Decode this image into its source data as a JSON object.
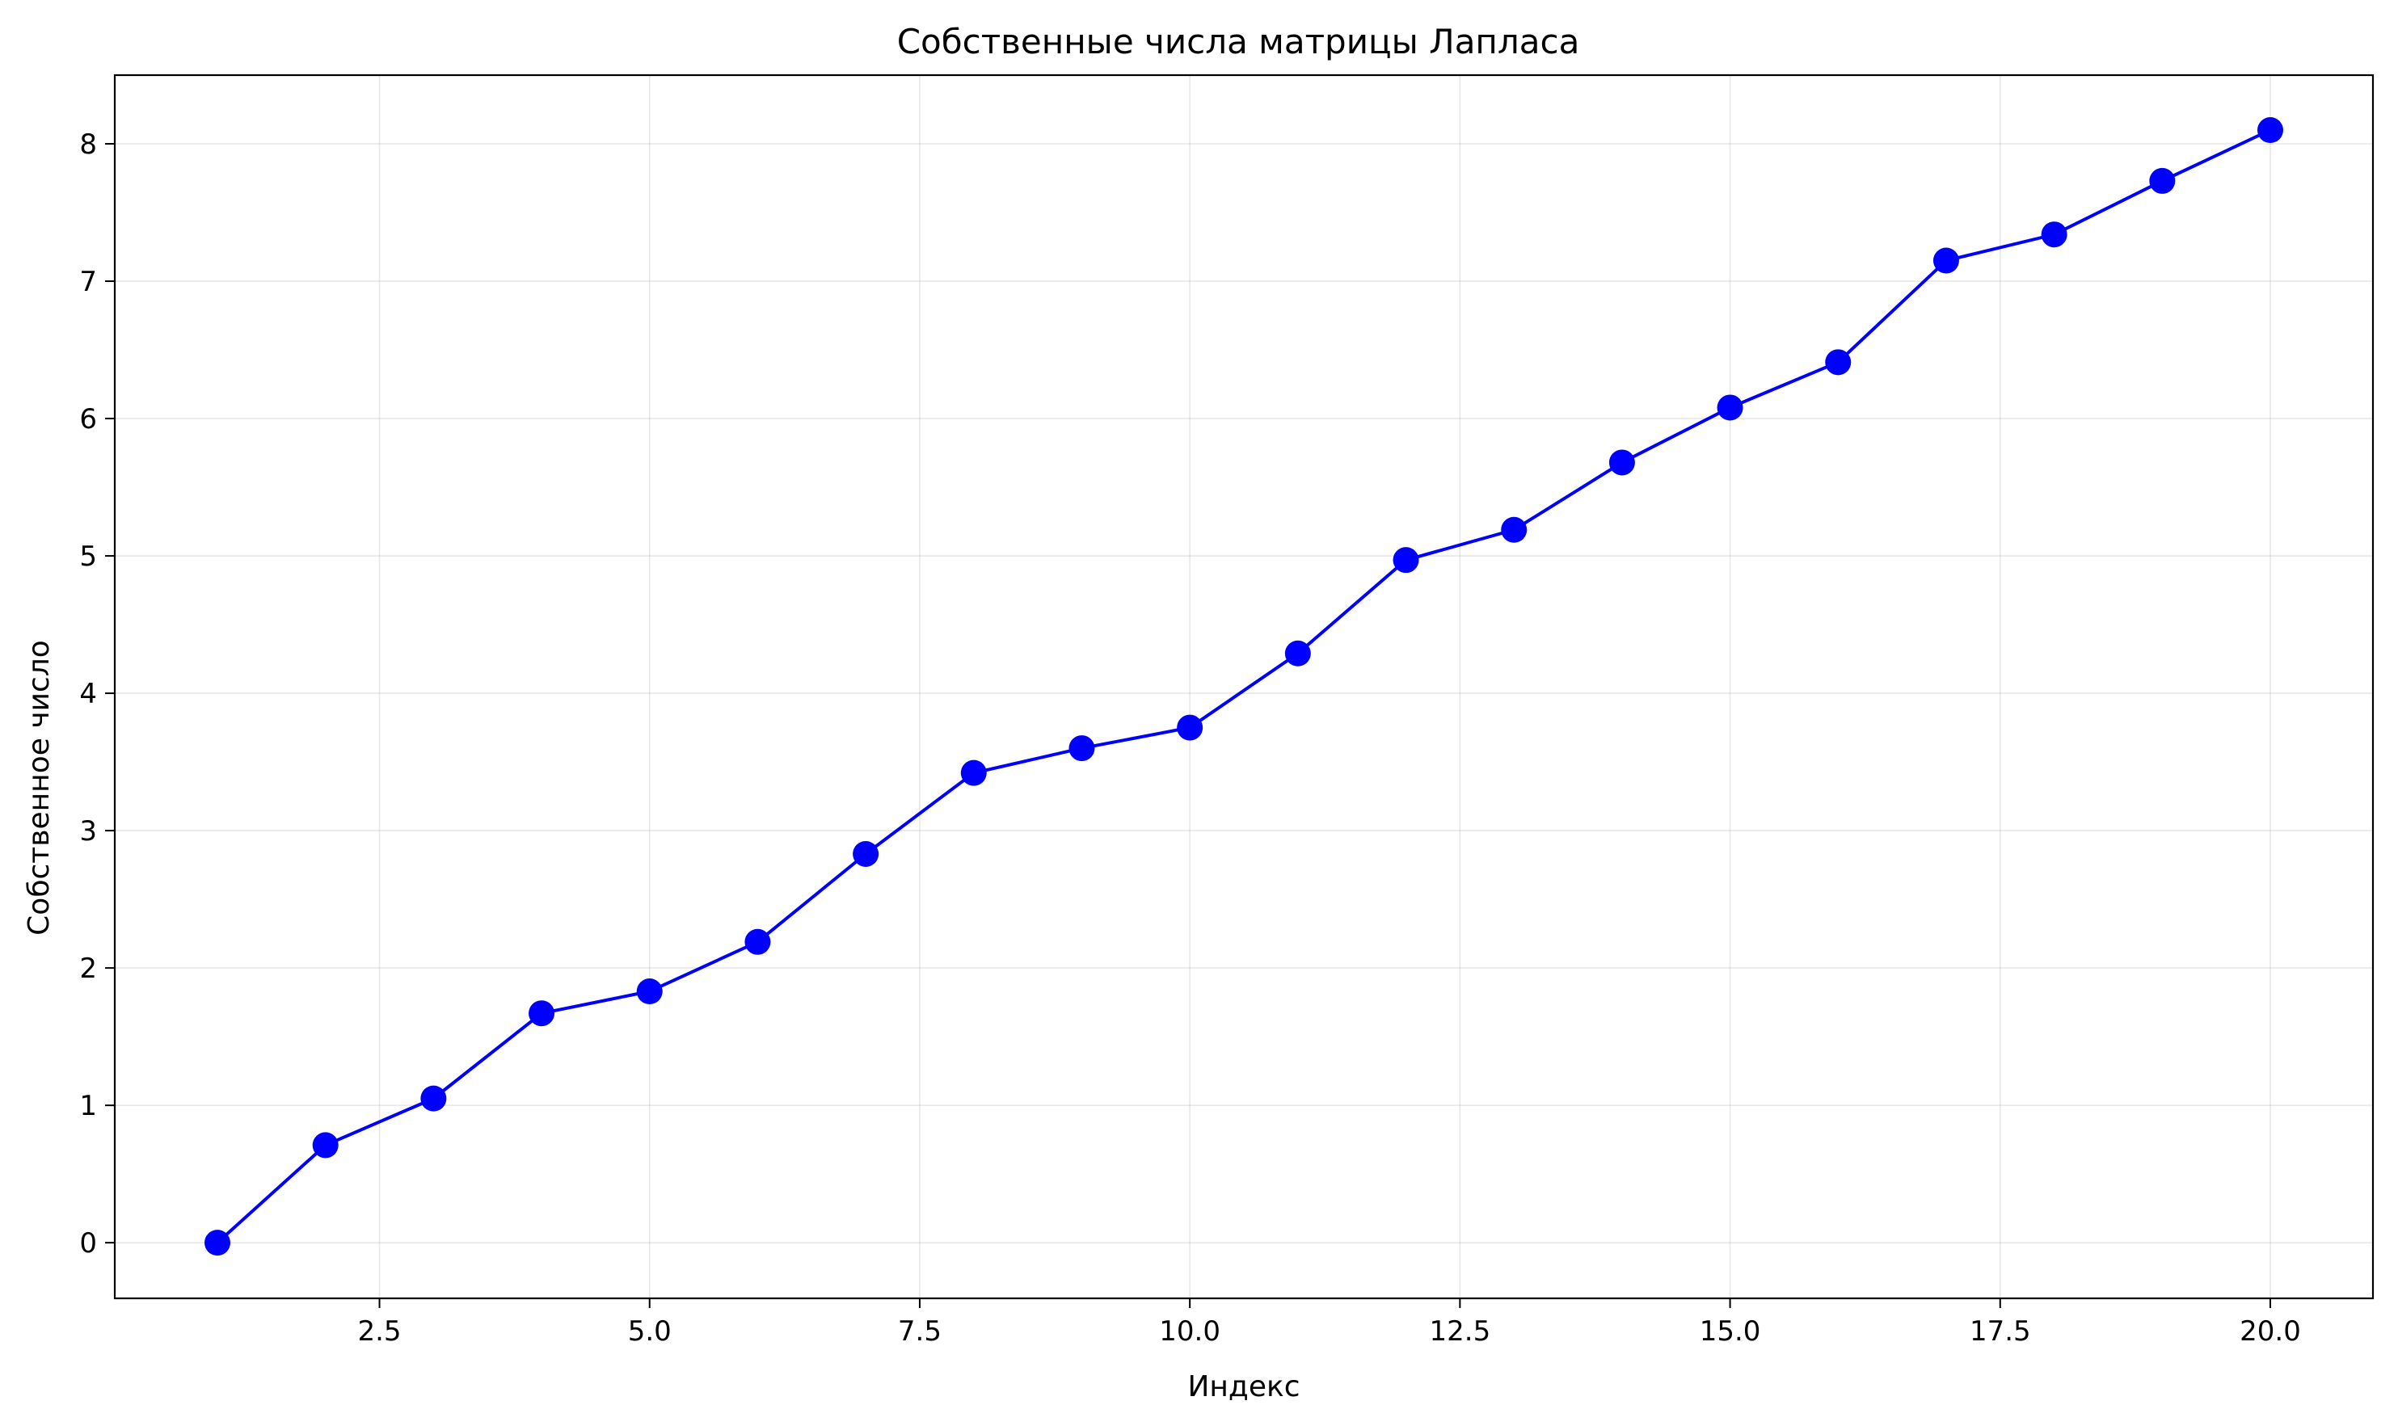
{
  "chart_data": {
    "type": "line",
    "title": "Собственные числа матрицы Лапласа",
    "xlabel": "Индекс",
    "ylabel": "Собственное число",
    "xlim": [
      0.05,
      20.95
    ],
    "ylim": [
      -0.405,
      8.5
    ],
    "xticks": [
      2.5,
      5.0,
      7.5,
      10.0,
      12.5,
      15.0,
      17.5,
      20.0
    ],
    "xtick_labels": [
      "2.5",
      "5.0",
      "7.5",
      "10.0",
      "12.5",
      "15.0",
      "17.5",
      "20.0"
    ],
    "yticks": [
      0,
      1,
      2,
      3,
      4,
      5,
      6,
      7,
      8
    ],
    "ytick_labels": [
      "0",
      "1",
      "2",
      "3",
      "4",
      "5",
      "6",
      "7",
      "8"
    ],
    "grid": true,
    "series": [
      {
        "color": "#0000ff",
        "marker": "circle",
        "x": [
          1,
          2,
          3,
          4,
          5,
          6,
          7,
          8,
          9,
          10,
          11,
          12,
          13,
          14,
          15,
          16,
          17,
          18,
          19,
          20
        ],
        "y": [
          0.0,
          0.71,
          1.05,
          1.67,
          1.83,
          2.19,
          2.83,
          3.42,
          3.6,
          3.75,
          4.29,
          4.97,
          5.19,
          5.68,
          6.08,
          6.41,
          7.15,
          7.34,
          7.73,
          8.1
        ]
      }
    ]
  }
}
